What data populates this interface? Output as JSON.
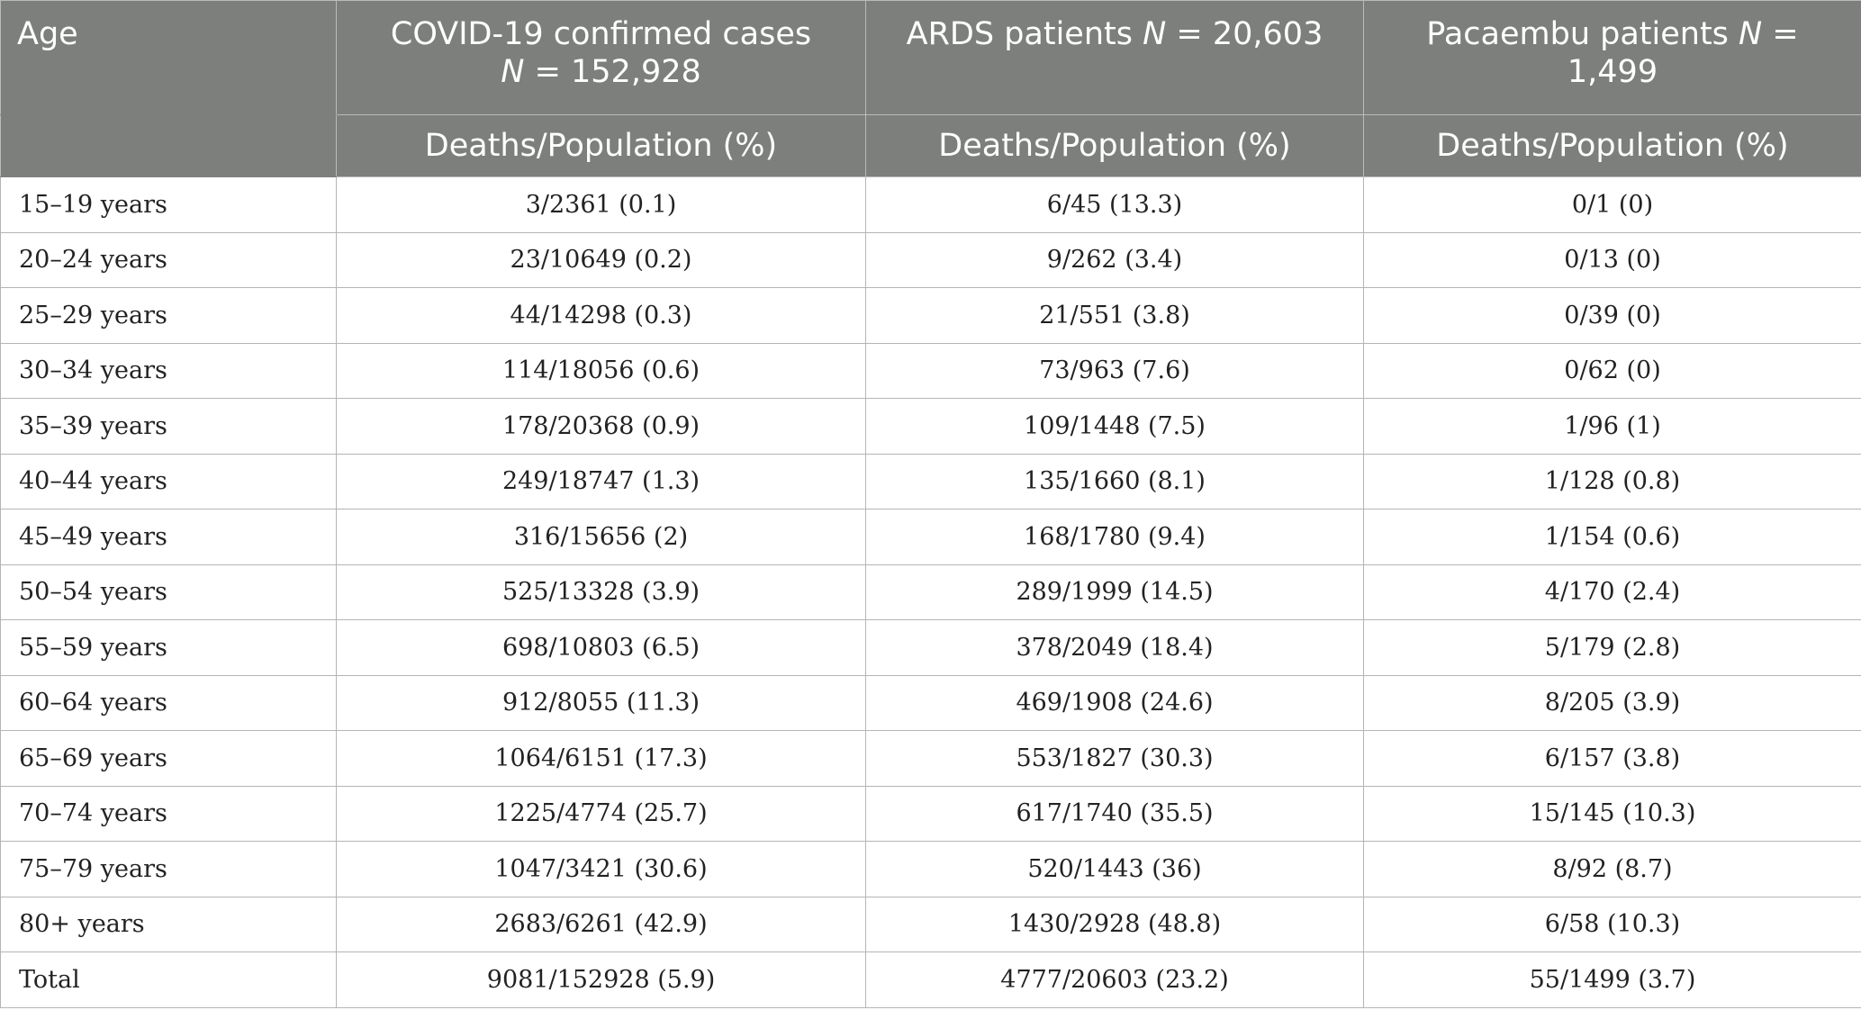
{
  "header": {
    "age": "Age",
    "groups": [
      {
        "label": "COVID-19 confirmed cases",
        "n_symbol": "N",
        "n_value": " = 152,928"
      },
      {
        "label": "ARDS patients ",
        "n_symbol": "N",
        "n_value": " = 20,603"
      },
      {
        "label": "Pacaembu patients ",
        "n_symbol": "N",
        "n_value": " = 1,499"
      }
    ],
    "subheader": "Deaths/Population (%)"
  },
  "rows": [
    {
      "age": "15–19 years",
      "covid": "3/2361 (0.1)",
      "ards": "6/45 (13.3)",
      "pacaembu": "0/1 (0)"
    },
    {
      "age": "20–24 years",
      "covid": "23/10649 (0.2)",
      "ards": "9/262 (3.4)",
      "pacaembu": "0/13 (0)"
    },
    {
      "age": "25–29 years",
      "covid": "44/14298 (0.3)",
      "ards": "21/551 (3.8)",
      "pacaembu": "0/39 (0)"
    },
    {
      "age": "30–34 years",
      "covid": "114/18056 (0.6)",
      "ards": "73/963 (7.6)",
      "pacaembu": "0/62 (0)"
    },
    {
      "age": "35–39 years",
      "covid": "178/20368 (0.9)",
      "ards": "109/1448 (7.5)",
      "pacaembu": "1/96 (1)"
    },
    {
      "age": "40–44 years",
      "covid": "249/18747 (1.3)",
      "ards": "135/1660 (8.1)",
      "pacaembu": "1/128 (0.8)"
    },
    {
      "age": "45–49 years",
      "covid": "316/15656 (2)",
      "ards": "168/1780 (9.4)",
      "pacaembu": "1/154 (0.6)"
    },
    {
      "age": "50–54 years",
      "covid": "525/13328 (3.9)",
      "ards": "289/1999 (14.5)",
      "pacaembu": "4/170 (2.4)"
    },
    {
      "age": "55–59 years",
      "covid": "698/10803 (6.5)",
      "ards": "378/2049 (18.4)",
      "pacaembu": "5/179 (2.8)"
    },
    {
      "age": "60–64 years",
      "covid": "912/8055 (11.3)",
      "ards": "469/1908 (24.6)",
      "pacaembu": "8/205 (3.9)"
    },
    {
      "age": "65–69 years",
      "covid": "1064/6151 (17.3)",
      "ards": "553/1827 (30.3)",
      "pacaembu": "6/157 (3.8)"
    },
    {
      "age": "70–74 years",
      "covid": "1225/4774 (25.7)",
      "ards": "617/1740 (35.5)",
      "pacaembu": "15/145 (10.3)"
    },
    {
      "age": "75–79 years",
      "covid": "1047/3421 (30.6)",
      "ards": "520/1443 (36)",
      "pacaembu": "8/92 (8.7)"
    },
    {
      "age": "80+ years",
      "covid": "2683/6261 (42.9)",
      "ards": "1430/2928 (48.8)",
      "pacaembu": "6/58 (10.3)"
    },
    {
      "age": "Total",
      "covid": "9081/152928 (5.9)",
      "ards": "4777/20603 (23.2)",
      "pacaembu": "55/1499 (3.7)"
    }
  ],
  "colors": {
    "header_bg": "#7d7f7d",
    "header_text": "#ffffff",
    "grid": "#b5b5b5"
  }
}
